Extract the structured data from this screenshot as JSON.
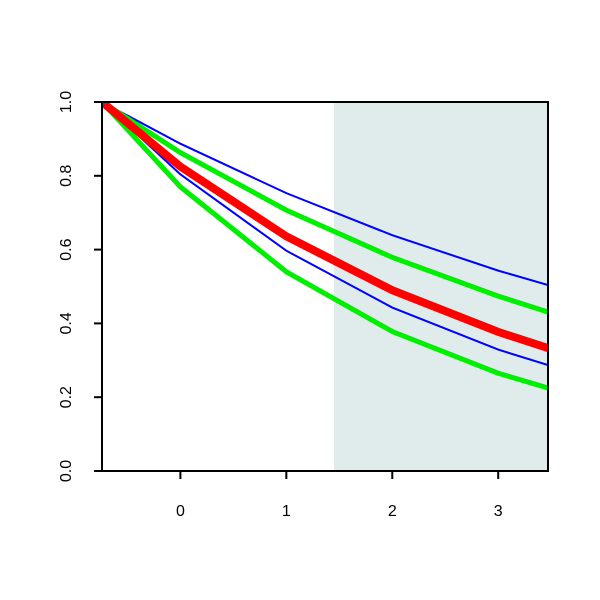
{
  "chart_data": {
    "type": "line",
    "x": [
      -0.74,
      0,
      1,
      2,
      3,
      3.47
    ],
    "series": [
      {
        "color": "#0000ff",
        "linewidth": 2,
        "values": [
          1.0,
          0.887,
          0.753,
          0.639,
          0.543,
          0.504
        ]
      },
      {
        "color": "#0000ff",
        "linewidth": 2,
        "values": [
          1.0,
          0.804,
          0.597,
          0.443,
          0.329,
          0.287
        ]
      },
      {
        "color": "#00ee00",
        "linewidth": 5,
        "values": [
          1.0,
          0.863,
          0.707,
          0.579,
          0.474,
          0.431
        ]
      },
      {
        "color": "#00ee00",
        "linewidth": 5,
        "values": [
          1.0,
          0.77,
          0.54,
          0.378,
          0.265,
          0.225
        ]
      },
      {
        "color": "#ff0000",
        "linewidth": 8,
        "values": [
          1.0,
          0.825,
          0.636,
          0.49,
          0.377,
          0.333
        ]
      }
    ],
    "shaded_region": {
      "xlim": [
        1.45,
        3.47
      ],
      "color": "#dfeceb"
    },
    "xlim": [
      -0.74,
      3.47
    ],
    "ylim": [
      0,
      1
    ],
    "xticks": [
      0,
      1,
      2,
      3
    ],
    "yticks": [
      {
        "value": 0,
        "label": "0.0"
      },
      {
        "value": 0.2,
        "label": "0.2"
      },
      {
        "value": 0.4,
        "label": "0.4"
      },
      {
        "value": 0.6,
        "label": "0.6"
      },
      {
        "value": 0.8,
        "label": "0.8"
      },
      {
        "value": 1,
        "label": "1.0"
      }
    ]
  }
}
